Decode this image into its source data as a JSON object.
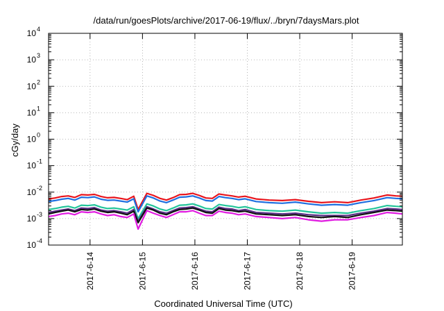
{
  "chart_data": {
    "type": "line",
    "title": "/data/run/goesPlots/archive/2017-06-19/flux/../bryn/7daysMars.plot",
    "xlabel": "Coordinated Universal Time (UTC)",
    "ylabel": "cGy/day",
    "y_scale": "log",
    "ylim": [
      0.0001,
      10000
    ],
    "xlim": [
      "2017-06-13T05:00",
      "2017-06-19T23:00"
    ],
    "grid": true,
    "legend": "none",
    "y_ticks": [
      {
        "base": "10",
        "exp": "-4",
        "value": 0.0001
      },
      {
        "base": "10",
        "exp": "-3",
        "value": 0.001
      },
      {
        "base": "10",
        "exp": "-2",
        "value": 0.01
      },
      {
        "base": "10",
        "exp": "-1",
        "value": 0.1
      },
      {
        "base": "10",
        "exp": "0",
        "value": 1
      },
      {
        "base": "10",
        "exp": "1",
        "value": 10
      },
      {
        "base": "10",
        "exp": "2",
        "value": 100
      },
      {
        "base": "10",
        "exp": "3",
        "value": 1000
      },
      {
        "base": "10",
        "exp": "4",
        "value": 10000
      }
    ],
    "x_ticks": [
      {
        "label": "2017-6-14",
        "value": "2017-06-14T00:00"
      },
      {
        "label": "2017-6-15",
        "value": "2017-06-15T00:00"
      },
      {
        "label": "2017-6-16",
        "value": "2017-06-16T00:00"
      },
      {
        "label": "2017-6-17",
        "value": "2017-06-17T00:00"
      },
      {
        "label": "2017-6-18",
        "value": "2017-06-18T00:00"
      },
      {
        "label": "2017-6-19",
        "value": "2017-06-19T00:00"
      }
    ],
    "x": [
      "2017-06-13T05:00",
      "2017-06-13T08:00",
      "2017-06-13T11:00",
      "2017-06-13T14:00",
      "2017-06-13T17:00",
      "2017-06-13T20:00",
      "2017-06-13T23:00",
      "2017-06-14T02:00",
      "2017-06-14T05:00",
      "2017-06-14T08:00",
      "2017-06-14T11:00",
      "2017-06-14T14:00",
      "2017-06-14T17:00",
      "2017-06-14T20:00",
      "2017-06-14T22:00",
      "2017-06-15T02:00",
      "2017-06-15T05:00",
      "2017-06-15T08:00",
      "2017-06-15T11:00",
      "2017-06-15T14:00",
      "2017-06-15T17:00",
      "2017-06-15T20:00",
      "2017-06-15T23:00",
      "2017-06-16T02:00",
      "2017-06-16T05:00",
      "2017-06-16T08:00",
      "2017-06-16T11:00",
      "2017-06-16T14:00",
      "2017-06-16T17:00",
      "2017-06-16T20:00",
      "2017-06-16T23:00",
      "2017-06-17T04:00",
      "2017-06-17T10:00",
      "2017-06-17T16:00",
      "2017-06-17T22:00",
      "2017-06-18T04:00",
      "2017-06-18T10:00",
      "2017-06-18T16:00",
      "2017-06-18T22:00",
      "2017-06-19T04:00",
      "2017-06-19T10:00",
      "2017-06-19T16:00",
      "2017-06-19T20:00",
      "2017-06-19T23:00"
    ],
    "series": [
      {
        "color": "#e8141c",
        "values": [
          0.0055,
          0.006,
          0.0068,
          0.0072,
          0.0063,
          0.008,
          0.0078,
          0.0082,
          0.0068,
          0.0061,
          0.0063,
          0.0058,
          0.0052,
          0.007,
          0.0022,
          0.009,
          0.0075,
          0.0058,
          0.005,
          0.0062,
          0.008,
          0.0082,
          0.009,
          0.0075,
          0.006,
          0.0058,
          0.0085,
          0.0078,
          0.0072,
          0.0065,
          0.007,
          0.0055,
          0.005,
          0.0048,
          0.0052,
          0.0045,
          0.004,
          0.0043,
          0.004,
          0.005,
          0.006,
          0.0078,
          0.0072,
          0.007
        ]
      },
      {
        "color": "#1f6fe0",
        "values": [
          0.0044,
          0.0048,
          0.0054,
          0.0058,
          0.005,
          0.0064,
          0.0062,
          0.0066,
          0.0054,
          0.0049,
          0.005,
          0.0046,
          0.0042,
          0.0056,
          0.0018,
          0.0072,
          0.006,
          0.0046,
          0.004,
          0.005,
          0.0064,
          0.0066,
          0.0072,
          0.006,
          0.0048,
          0.0046,
          0.0068,
          0.0062,
          0.0058,
          0.0052,
          0.0056,
          0.0044,
          0.004,
          0.0038,
          0.0042,
          0.0036,
          0.0032,
          0.0034,
          0.0032,
          0.004,
          0.0048,
          0.0062,
          0.0058,
          0.0056
        ]
      },
      {
        "color": "#23c49a",
        "values": [
          0.0022,
          0.0024,
          0.0027,
          0.0029,
          0.0025,
          0.0032,
          0.0031,
          0.0033,
          0.0027,
          0.0024,
          0.0025,
          0.0023,
          0.0021,
          0.0028,
          0.001,
          0.0036,
          0.003,
          0.0023,
          0.002,
          0.0025,
          0.0032,
          0.0033,
          0.0036,
          0.003,
          0.0024,
          0.0023,
          0.0034,
          0.0031,
          0.0029,
          0.0026,
          0.0028,
          0.0022,
          0.002,
          0.0019,
          0.0021,
          0.0018,
          0.0016,
          0.0017,
          0.0016,
          0.002,
          0.0024,
          0.0031,
          0.0029,
          0.0028
        ]
      },
      {
        "color": "#5a2d86",
        "values": [
          0.0017,
          0.0019,
          0.0021,
          0.0023,
          0.002,
          0.0025,
          0.0024,
          0.0026,
          0.0021,
          0.0019,
          0.002,
          0.0018,
          0.0016,
          0.0022,
          0.0008,
          0.0028,
          0.0023,
          0.0018,
          0.0016,
          0.002,
          0.0025,
          0.0026,
          0.0028,
          0.0023,
          0.0019,
          0.0018,
          0.0027,
          0.0024,
          0.0023,
          0.002,
          0.0022,
          0.0017,
          0.0016,
          0.0015,
          0.0016,
          0.0014,
          0.0013,
          0.0013,
          0.0013,
          0.0016,
          0.0019,
          0.0024,
          0.0023,
          0.0022
        ]
      },
      {
        "color": "#111111",
        "values": [
          0.0015,
          0.0017,
          0.0019,
          0.0021,
          0.0018,
          0.0022,
          0.0021,
          0.0023,
          0.0019,
          0.0017,
          0.0018,
          0.0016,
          0.0014,
          0.0019,
          0.0007,
          0.0025,
          0.0021,
          0.0016,
          0.0014,
          0.0018,
          0.0022,
          0.0023,
          0.0025,
          0.0021,
          0.0017,
          0.0016,
          0.0024,
          0.0021,
          0.002,
          0.0018,
          0.0019,
          0.0015,
          0.0014,
          0.0013,
          0.0014,
          0.0012,
          0.0011,
          0.0012,
          0.0011,
          0.0014,
          0.0017,
          0.0021,
          0.002,
          0.0019
        ]
      },
      {
        "color": "#e01be0",
        "values": [
          0.0012,
          0.0013,
          0.0015,
          0.0016,
          0.0014,
          0.0018,
          0.0017,
          0.0018,
          0.0015,
          0.0013,
          0.0014,
          0.0012,
          0.0011,
          0.0015,
          0.0004,
          0.002,
          0.0016,
          0.0013,
          0.0011,
          0.0014,
          0.0018,
          0.0018,
          0.002,
          0.0016,
          0.0013,
          0.0013,
          0.0019,
          0.0017,
          0.0016,
          0.0014,
          0.0015,
          0.0012,
          0.0011,
          0.001,
          0.0011,
          0.0009,
          0.0008,
          0.0009,
          0.0009,
          0.0011,
          0.0013,
          0.0017,
          0.0016,
          0.0015
        ]
      }
    ]
  }
}
